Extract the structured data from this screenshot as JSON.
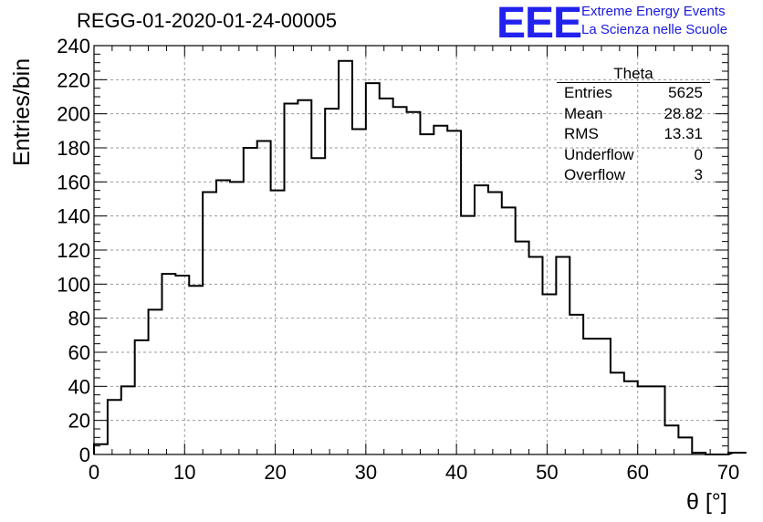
{
  "chart_data": {
    "type": "bar",
    "style": "step-histogram",
    "title": "REGG-01-2020-01-24-00005",
    "xlabel": "θ [°]",
    "ylabel": "Entries/bin",
    "xlim": [
      0,
      70
    ],
    "ylim": [
      0,
      240
    ],
    "xticks": [
      0,
      10,
      20,
      30,
      40,
      50,
      60,
      70
    ],
    "yticks": [
      0,
      20,
      40,
      60,
      80,
      100,
      120,
      140,
      160,
      180,
      200,
      220,
      240
    ],
    "grid": true,
    "bin_width": 1.5,
    "values": [
      6,
      32,
      40,
      67,
      85,
      106,
      105,
      99,
      154,
      161,
      160,
      180,
      184,
      155,
      206,
      208,
      174,
      203,
      231,
      191,
      218,
      209,
      204,
      201,
      188,
      193,
      190,
      140,
      158,
      154,
      145,
      125,
      116,
      94,
      116,
      82,
      68,
      68,
      48,
      43,
      40,
      40,
      17,
      10,
      1,
      0,
      0,
      1,
      1
    ],
    "stats_box": {
      "title": "Theta",
      "rows": [
        {
          "label": "Entries",
          "value": "5625"
        },
        {
          "label": "Mean",
          "value": "28.82"
        },
        {
          "label": "RMS",
          "value": "13.31"
        },
        {
          "label": "Underflow",
          "value": "0"
        },
        {
          "label": "Overflow",
          "value": "3"
        }
      ]
    }
  },
  "logo": {
    "mark": "EEE",
    "line1": "Extreme Energy Events",
    "line2": "La Scienza nelle Scuole"
  },
  "colors": {
    "histogram": "#000000",
    "grid": "#9a9a9a",
    "logo": "#1a1ae0"
  }
}
